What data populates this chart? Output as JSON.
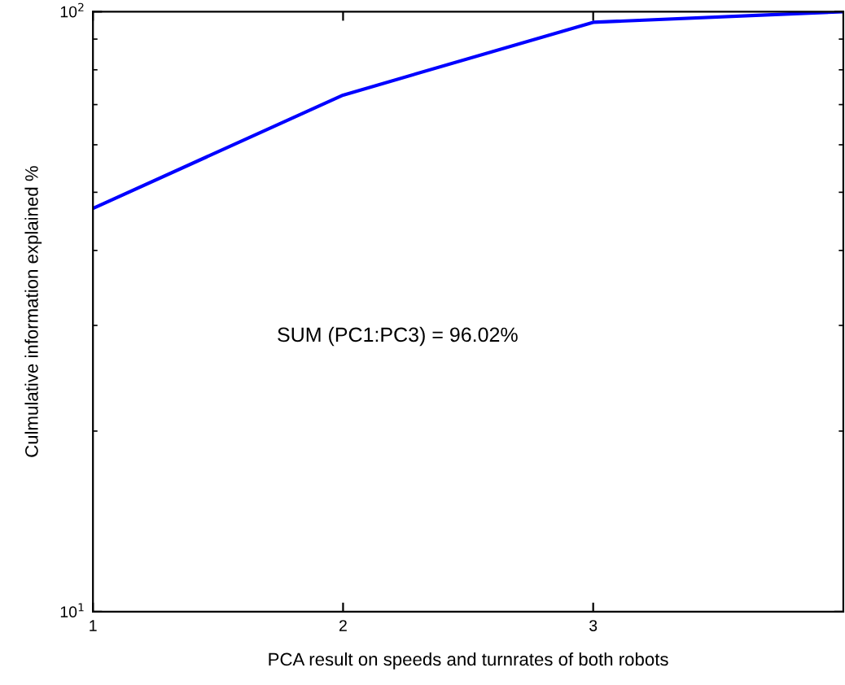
{
  "chart_data": {
    "type": "line",
    "xlabel": "PCA result on speeds and turnrates of both robots",
    "ylabel": "Culmulative information explained %",
    "x": [
      1,
      2,
      3,
      4
    ],
    "series": [
      {
        "color": "#0000ff",
        "values": [
          47,
          72.6,
          96,
          100
        ]
      }
    ],
    "xlim": [
      1,
      4
    ],
    "xticks": [
      1,
      2,
      3
    ],
    "log": true,
    "ylim": [
      10,
      100
    ],
    "yticks": [
      {
        "value": 10,
        "label": "10$^{1}$"
      },
      {
        "value": 100,
        "label": "10$^{2}$"
      }
    ],
    "annotations": [
      "SUM (PC1:PC3) = 96.02%"
    ],
    "grid": false,
    "legend": false,
    "marker": "none",
    "line_style": "solid"
  }
}
